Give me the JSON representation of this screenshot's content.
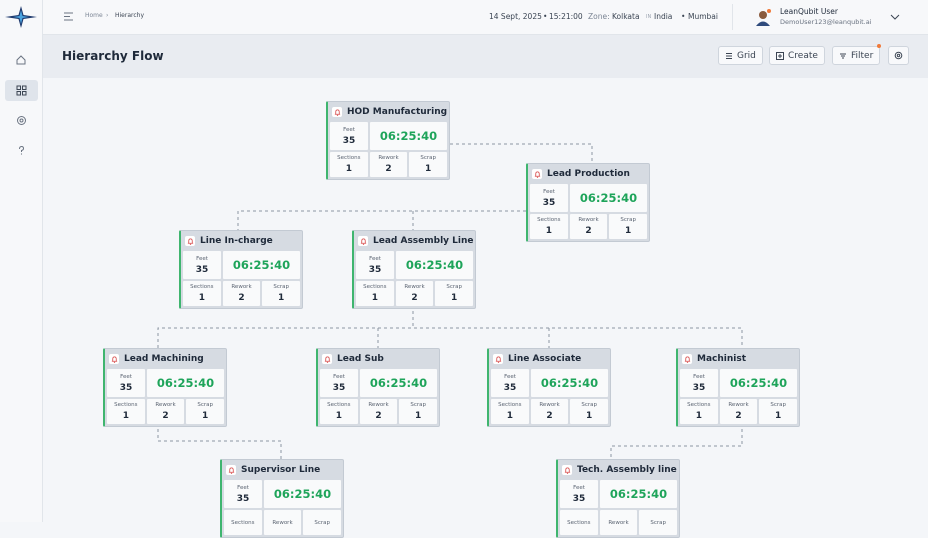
{
  "breadcrumb": [
    "Home",
    "Hierarchy"
  ],
  "status": {
    "date": "14 Sept, 2025",
    "time": "15:21:00",
    "zone_label": "Zone:",
    "zone": "Kolkata",
    "country_code": "IN",
    "country": "India",
    "city": "Mumbai"
  },
  "user": {
    "name": "LeanQubit User",
    "email": "DemoUser123@leanqubit.ai"
  },
  "header": {
    "title": "Hierarchy Flow",
    "actions": [
      "Grid",
      "Create",
      "Filter"
    ]
  },
  "nodes": [
    {
      "title": "HOD Manufacturing",
      "metric_label": "Feet",
      "metric": 35,
      "time": "06:25:40",
      "stats": [
        {
          "label": "Sections",
          "value": 1
        },
        {
          "label": "Rework",
          "value": 2
        },
        {
          "label": "Scrap",
          "value": 1
        }
      ]
    },
    {
      "title": "Lead Production",
      "metric_label": "Feet",
      "metric": 35,
      "time": "06:25:40",
      "stats": [
        {
          "label": "Sections",
          "value": 1
        },
        {
          "label": "Rework",
          "value": 2
        },
        {
          "label": "Scrap",
          "value": 1
        }
      ]
    },
    {
      "title": "Line In-charge",
      "metric_label": "Feet",
      "metric": 35,
      "time": "06:25:40",
      "stats": [
        {
          "label": "Sections",
          "value": 1
        },
        {
          "label": "Rework",
          "value": 2
        },
        {
          "label": "Scrap",
          "value": 1
        }
      ]
    },
    {
      "title": "Lead Assembly Line",
      "metric_label": "Feet",
      "metric": 35,
      "time": "06:25:40",
      "stats": [
        {
          "label": "Sections",
          "value": 1
        },
        {
          "label": "Rework",
          "value": 2
        },
        {
          "label": "Scrap",
          "value": 1
        }
      ]
    },
    {
      "title": "Lead Machining",
      "metric_label": "Feet",
      "metric": 35,
      "time": "06:25:40",
      "stats": [
        {
          "label": "Sections",
          "value": 1
        },
        {
          "label": "Rework",
          "value": 2
        },
        {
          "label": "Scrap",
          "value": 1
        }
      ]
    },
    {
      "title": "Lead Sub",
      "metric_label": "Feet",
      "metric": 35,
      "time": "06:25:40",
      "stats": [
        {
          "label": "Sections",
          "value": 1
        },
        {
          "label": "Rework",
          "value": 2
        },
        {
          "label": "Scrap",
          "value": 1
        }
      ]
    },
    {
      "title": "Line Associate",
      "metric_label": "Feet",
      "metric": 35,
      "time": "06:25:40",
      "stats": [
        {
          "label": "Sections",
          "value": 1
        },
        {
          "label": "Rework",
          "value": 2
        },
        {
          "label": "Scrap",
          "value": 1
        }
      ]
    },
    {
      "title": "Machinist",
      "metric_label": "Feet",
      "metric": 35,
      "time": "06:25:40",
      "stats": [
        {
          "label": "Sections",
          "value": 1
        },
        {
          "label": "Rework",
          "value": 2
        },
        {
          "label": "Scrap",
          "value": 1
        }
      ]
    },
    {
      "title": "Supervisor Line",
      "metric_label": "Feet",
      "metric": 35,
      "time": "06:25:40",
      "stats": [
        {
          "label": "Sections"
        },
        {
          "label": "Rework"
        },
        {
          "label": "Scrap"
        }
      ]
    },
    {
      "title": "Tech. Assembly line",
      "metric_label": "Feet",
      "metric": 35,
      "time": "06:25:40",
      "stats": [
        {
          "label": "Sections"
        },
        {
          "label": "Rework"
        },
        {
          "label": "Scrap"
        }
      ]
    }
  ]
}
